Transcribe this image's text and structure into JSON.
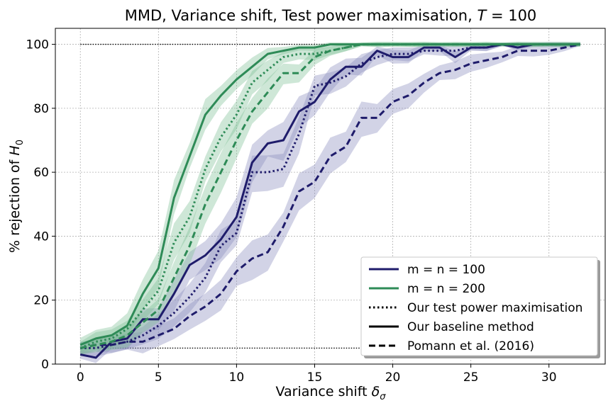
{
  "chart_data": {
    "type": "line",
    "title_main": "MMD, Variance shift, Test power maximisation, ",
    "title_T": "T",
    "title_val": " = 100",
    "xlabel_main": "Variance shift ",
    "xlabel_sym": "δ",
    "xlabel_sub": "σ",
    "ylabel_main": "% rejection of ",
    "ylabel_sym": "H",
    "ylabel_sub": "0",
    "xlim": [
      -1.6,
      33.6
    ],
    "ylim": [
      0,
      105
    ],
    "xticks": [
      0,
      5,
      10,
      15,
      20,
      25,
      30
    ],
    "yticks": [
      0,
      20,
      40,
      60,
      80,
      100
    ],
    "grid": true,
    "legend_position": "lower-right",
    "reference_lines": [
      {
        "y": 100,
        "x_range": [
          0,
          32
        ],
        "style": "dotted"
      },
      {
        "y": 5,
        "x_range": [
          0,
          32
        ],
        "style": "dotted"
      }
    ],
    "colors": {
      "m100": "#1f1c6b",
      "m200": "#2e8b57",
      "band100": "#8a8bbd",
      "band200": "#7fbf96"
    },
    "legend": [
      {
        "label": "m = n = 100",
        "kind": "color",
        "color": "#1f1c6b"
      },
      {
        "label": "m = n = 200",
        "kind": "color",
        "color": "#2e8b57"
      },
      {
        "label": "Our test power maximisation",
        "kind": "dotted"
      },
      {
        "label": "Our baseline method",
        "kind": "solid"
      },
      {
        "label": "Pomann et al. (2016)",
        "kind": "dashed"
      }
    ],
    "x": [
      0,
      1,
      2,
      3,
      4,
      5,
      6,
      7,
      8,
      9,
      10,
      11,
      12,
      13,
      14,
      15,
      16,
      17,
      18,
      19,
      20,
      21,
      22,
      23,
      24,
      25,
      26,
      27,
      28,
      29,
      30,
      31,
      32
    ],
    "series": [
      {
        "group": "m100",
        "style": "solid",
        "band": true,
        "values": [
          3,
          2,
          7,
          8,
          14,
          14,
          22,
          31,
          34,
          39,
          46,
          63,
          69,
          70,
          79,
          82,
          89,
          93,
          93,
          98,
          96,
          96,
          99,
          99,
          96,
          99,
          99,
          100,
          99,
          100,
          100,
          100,
          100
        ]
      },
      {
        "group": "m100",
        "style": "dotted",
        "band": true,
        "values": [
          5,
          5,
          6,
          7,
          9,
          12,
          16,
          21,
          27,
          37,
          41,
          60,
          60,
          61,
          72,
          87,
          88,
          90,
          94,
          96,
          97,
          97,
          98,
          98,
          98,
          99,
          99,
          100,
          100,
          100,
          100,
          100,
          100
        ]
      },
      {
        "group": "m100",
        "style": "dashed",
        "band": true,
        "values": [
          5,
          6,
          6,
          7,
          7,
          9,
          11,
          15,
          18,
          22,
          29,
          33,
          35,
          43,
          54,
          57,
          65,
          68,
          77,
          77,
          82,
          84,
          88,
          91,
          92,
          94,
          95,
          96,
          98,
          98,
          98,
          99,
          100
        ]
      },
      {
        "group": "m200",
        "style": "solid",
        "band": true,
        "values": [
          6,
          8,
          9,
          12,
          22,
          30,
          52,
          65,
          78,
          84,
          89,
          93,
          97,
          98,
          99,
          99,
          100,
          100,
          100,
          100,
          100,
          100,
          100,
          100,
          100,
          100,
          100,
          100,
          100,
          100,
          100,
          100,
          100
        ]
      },
      {
        "group": "m200",
        "style": "dotted",
        "band": true,
        "values": [
          5,
          7,
          8,
          11,
          17,
          23,
          38,
          46,
          61,
          71,
          78,
          88,
          92,
          96,
          97,
          97,
          98,
          99,
          100,
          100,
          100,
          100,
          100,
          100,
          100,
          100,
          100,
          100,
          100,
          100,
          100,
          100,
          100
        ]
      },
      {
        "group": "m200",
        "style": "dashed",
        "band": true,
        "values": [
          5,
          6,
          7,
          9,
          13,
          17,
          27,
          37,
          50,
          60,
          70,
          79,
          85,
          91,
          91,
          96,
          98,
          99,
          100,
          100,
          100,
          100,
          100,
          100,
          100,
          100,
          100,
          100,
          100,
          100,
          100,
          100,
          100
        ]
      }
    ]
  }
}
